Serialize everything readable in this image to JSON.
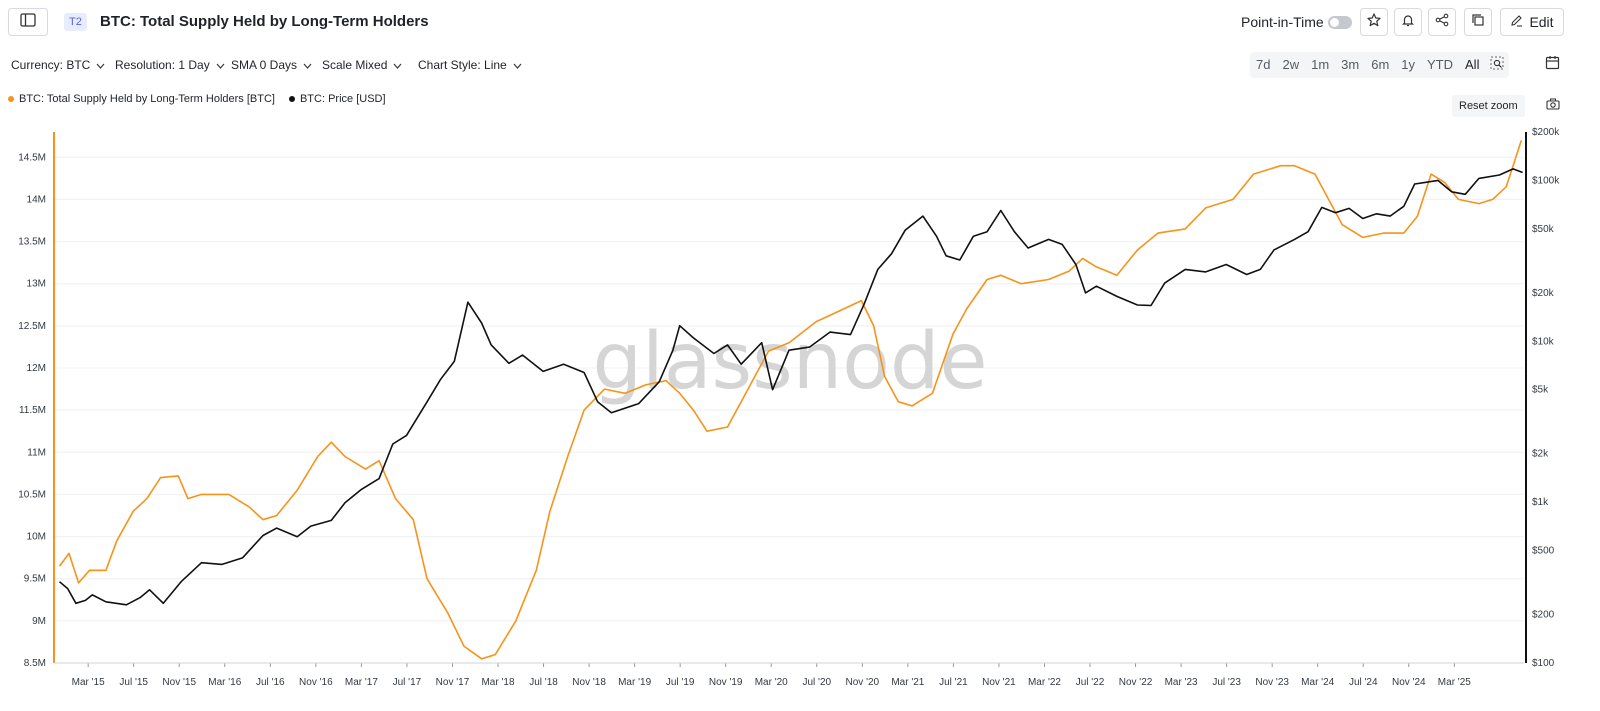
{
  "header": {
    "tier_badge": "T2",
    "title": "BTC: Total Supply Held by Long-Term Holders",
    "point_in_time_label": "Point-in-Time",
    "point_in_time_enabled": false,
    "edit_label": "Edit"
  },
  "controls": {
    "currency": "Currency: BTC",
    "resolution": "Resolution: 1 Day",
    "sma": "SMA 0 Days",
    "scale": "Scale Mixed",
    "chart_style": "Chart Style: Line"
  },
  "ranges": [
    "7d",
    "2w",
    "1m",
    "3m",
    "6m",
    "1y",
    "YTD",
    "All"
  ],
  "reset_zoom_label": "Reset zoom",
  "watermark": "glassnode",
  "colors": {
    "lth_series": "#f7931a",
    "price_series": "#111111",
    "accent": "#5a63d6"
  },
  "legend": [
    {
      "label": "BTC: Total Supply Held by Long-Term Holders [BTC]",
      "color": "#f7931a"
    },
    {
      "label": "BTC: Price [USD]",
      "color": "#111111"
    }
  ],
  "chart_data": {
    "type": "line",
    "x_ticks": [
      "Mar '15",
      "Jul '15",
      "Nov '15",
      "Mar '16",
      "Jul '16",
      "Nov '16",
      "Mar '17",
      "Jul '17",
      "Nov '17",
      "Mar '18",
      "Jul '18",
      "Nov '18",
      "Mar '19",
      "Jul '19",
      "Nov '19",
      "Mar '20",
      "Jul '20",
      "Nov '20",
      "Mar '21",
      "Jul '21",
      "Nov '21",
      "Mar '22",
      "Jul '22",
      "Nov '22",
      "Mar '23",
      "Jul '23",
      "Nov '23",
      "Mar '24",
      "Jul '24",
      "Nov '24",
      "Mar '25"
    ],
    "x_range": [
      2014.92,
      2025.68
    ],
    "y_left": {
      "scale": "linear",
      "ylim": [
        8.5,
        14.8
      ],
      "ticks": [
        8.5,
        9,
        9.5,
        10,
        10.5,
        11,
        11.5,
        12,
        12.5,
        13,
        13.5,
        14,
        14.5
      ],
      "tick_labels": [
        "8.5M",
        "9M",
        "9.5M",
        "10M",
        "10.5M",
        "11M",
        "11.5M",
        "12M",
        "12.5M",
        "13M",
        "13.5M",
        "14M",
        "14.5M"
      ]
    },
    "y_right": {
      "scale": "log",
      "ylim": [
        100,
        200000
      ],
      "ticks": [
        100,
        200,
        500,
        1000,
        2000,
        5000,
        10000,
        20000,
        50000,
        100000,
        200000
      ],
      "tick_labels": [
        "$100",
        "$200",
        "$500",
        "$1k",
        "$2k",
        "$5k",
        "$10k",
        "$20k",
        "$50k",
        "$100k",
        "$200k"
      ]
    },
    "grid": true,
    "legend_position": "top-left",
    "series": [
      {
        "name": "BTC: Total Supply Held by Long-Term Holders [BTC]",
        "axis": "left",
        "points": [
          [
            2014.96,
            9.65
          ],
          [
            2015.03,
            9.8
          ],
          [
            2015.1,
            9.45
          ],
          [
            2015.18,
            9.6
          ],
          [
            2015.3,
            9.6
          ],
          [
            2015.38,
            9.95
          ],
          [
            2015.5,
            10.3
          ],
          [
            2015.6,
            10.45
          ],
          [
            2015.7,
            10.7
          ],
          [
            2015.83,
            10.72
          ],
          [
            2015.9,
            10.45
          ],
          [
            2016.0,
            10.5
          ],
          [
            2016.2,
            10.5
          ],
          [
            2016.35,
            10.35
          ],
          [
            2016.45,
            10.2
          ],
          [
            2016.55,
            10.25
          ],
          [
            2016.7,
            10.55
          ],
          [
            2016.85,
            10.95
          ],
          [
            2016.95,
            11.12
          ],
          [
            2017.05,
            10.95
          ],
          [
            2017.2,
            10.8
          ],
          [
            2017.3,
            10.9
          ],
          [
            2017.42,
            10.45
          ],
          [
            2017.55,
            10.2
          ],
          [
            2017.65,
            9.5
          ],
          [
            2017.8,
            9.1
          ],
          [
            2017.92,
            8.7
          ],
          [
            2018.05,
            8.55
          ],
          [
            2018.15,
            8.6
          ],
          [
            2018.3,
            9.0
          ],
          [
            2018.45,
            9.6
          ],
          [
            2018.55,
            10.3
          ],
          [
            2018.68,
            10.95
          ],
          [
            2018.8,
            11.5
          ],
          [
            2018.95,
            11.75
          ],
          [
            2019.1,
            11.7
          ],
          [
            2019.25,
            11.8
          ],
          [
            2019.4,
            11.85
          ],
          [
            2019.5,
            11.7
          ],
          [
            2019.6,
            11.5
          ],
          [
            2019.7,
            11.25
          ],
          [
            2019.85,
            11.3
          ],
          [
            2020.0,
            11.75
          ],
          [
            2020.15,
            12.2
          ],
          [
            2020.3,
            12.3
          ],
          [
            2020.5,
            12.55
          ],
          [
            2020.7,
            12.7
          ],
          [
            2020.83,
            12.8
          ],
          [
            2020.92,
            12.5
          ],
          [
            2021.0,
            11.9
          ],
          [
            2021.1,
            11.6
          ],
          [
            2021.2,
            11.55
          ],
          [
            2021.35,
            11.7
          ],
          [
            2021.5,
            12.4
          ],
          [
            2021.6,
            12.7
          ],
          [
            2021.75,
            13.05
          ],
          [
            2021.85,
            13.1
          ],
          [
            2022.0,
            13.0
          ],
          [
            2022.2,
            13.05
          ],
          [
            2022.35,
            13.15
          ],
          [
            2022.45,
            13.3
          ],
          [
            2022.55,
            13.2
          ],
          [
            2022.7,
            13.1
          ],
          [
            2022.85,
            13.4
          ],
          [
            2023.0,
            13.6
          ],
          [
            2023.2,
            13.65
          ],
          [
            2023.35,
            13.9
          ],
          [
            2023.55,
            14.0
          ],
          [
            2023.7,
            14.3
          ],
          [
            2023.9,
            14.4
          ],
          [
            2024.0,
            14.4
          ],
          [
            2024.15,
            14.3
          ],
          [
            2024.25,
            14.0
          ],
          [
            2024.35,
            13.7
          ],
          [
            2024.5,
            13.55
          ],
          [
            2024.65,
            13.6
          ],
          [
            2024.8,
            13.6
          ],
          [
            2024.9,
            13.8
          ],
          [
            2025.0,
            14.3
          ],
          [
            2025.1,
            14.2
          ],
          [
            2025.2,
            14.0
          ],
          [
            2025.35,
            13.95
          ],
          [
            2025.45,
            14.0
          ],
          [
            2025.55,
            14.15
          ],
          [
            2025.6,
            14.4
          ],
          [
            2025.66,
            14.7
          ]
        ]
      },
      {
        "name": "BTC: Price [USD]",
        "axis": "right",
        "points": [
          [
            2014.96,
            320
          ],
          [
            2015.02,
            290
          ],
          [
            2015.08,
            235
          ],
          [
            2015.15,
            245
          ],
          [
            2015.2,
            265
          ],
          [
            2015.3,
            240
          ],
          [
            2015.45,
            230
          ],
          [
            2015.55,
            255
          ],
          [
            2015.62,
            285
          ],
          [
            2015.72,
            235
          ],
          [
            2015.85,
            320
          ],
          [
            2016.0,
            420
          ],
          [
            2016.15,
            410
          ],
          [
            2016.3,
            450
          ],
          [
            2016.45,
            620
          ],
          [
            2016.55,
            690
          ],
          [
            2016.7,
            610
          ],
          [
            2016.8,
            710
          ],
          [
            2016.95,
            770
          ],
          [
            2017.05,
            990
          ],
          [
            2017.17,
            1200
          ],
          [
            2017.3,
            1400
          ],
          [
            2017.4,
            2300
          ],
          [
            2017.5,
            2600
          ],
          [
            2017.65,
            4200
          ],
          [
            2017.75,
            5800
          ],
          [
            2017.85,
            7500
          ],
          [
            2017.95,
            17500
          ],
          [
            2018.05,
            13000
          ],
          [
            2018.12,
            9500
          ],
          [
            2018.25,
            7300
          ],
          [
            2018.35,
            8200
          ],
          [
            2018.5,
            6500
          ],
          [
            2018.65,
            7200
          ],
          [
            2018.8,
            6400
          ],
          [
            2018.9,
            4200
          ],
          [
            2019.0,
            3600
          ],
          [
            2019.2,
            4100
          ],
          [
            2019.35,
            5600
          ],
          [
            2019.45,
            8800
          ],
          [
            2019.5,
            12500
          ],
          [
            2019.6,
            10500
          ],
          [
            2019.75,
            8400
          ],
          [
            2019.85,
            9500
          ],
          [
            2019.95,
            7200
          ],
          [
            2020.1,
            9800
          ],
          [
            2020.18,
            5000
          ],
          [
            2020.3,
            8800
          ],
          [
            2020.45,
            9200
          ],
          [
            2020.6,
            11400
          ],
          [
            2020.75,
            11000
          ],
          [
            2020.85,
            17000
          ],
          [
            2020.95,
            28000
          ],
          [
            2021.05,
            35000
          ],
          [
            2021.15,
            49000
          ],
          [
            2021.28,
            60000
          ],
          [
            2021.38,
            45000
          ],
          [
            2021.45,
            34000
          ],
          [
            2021.55,
            32000
          ],
          [
            2021.65,
            45000
          ],
          [
            2021.75,
            48000
          ],
          [
            2021.85,
            65000
          ],
          [
            2021.95,
            48000
          ],
          [
            2022.05,
            38000
          ],
          [
            2022.2,
            43000
          ],
          [
            2022.3,
            40000
          ],
          [
            2022.4,
            30000
          ],
          [
            2022.47,
            20000
          ],
          [
            2022.55,
            22000
          ],
          [
            2022.7,
            19000
          ],
          [
            2022.85,
            16800
          ],
          [
            2022.95,
            16700
          ],
          [
            2023.05,
            23000
          ],
          [
            2023.2,
            28000
          ],
          [
            2023.35,
            27000
          ],
          [
            2023.5,
            30000
          ],
          [
            2023.65,
            26000
          ],
          [
            2023.75,
            28000
          ],
          [
            2023.85,
            37000
          ],
          [
            2024.0,
            43000
          ],
          [
            2024.1,
            48000
          ],
          [
            2024.2,
            68000
          ],
          [
            2024.3,
            63000
          ],
          [
            2024.4,
            67000
          ],
          [
            2024.5,
            58000
          ],
          [
            2024.6,
            62000
          ],
          [
            2024.7,
            60000
          ],
          [
            2024.8,
            69000
          ],
          [
            2024.88,
            95000
          ],
          [
            2024.95,
            97000
          ],
          [
            2025.05,
            100000
          ],
          [
            2025.15,
            85000
          ],
          [
            2025.25,
            82000
          ],
          [
            2025.35,
            103000
          ],
          [
            2025.5,
            108000
          ],
          [
            2025.6,
            118000
          ],
          [
            2025.67,
            112000
          ]
        ]
      }
    ]
  }
}
